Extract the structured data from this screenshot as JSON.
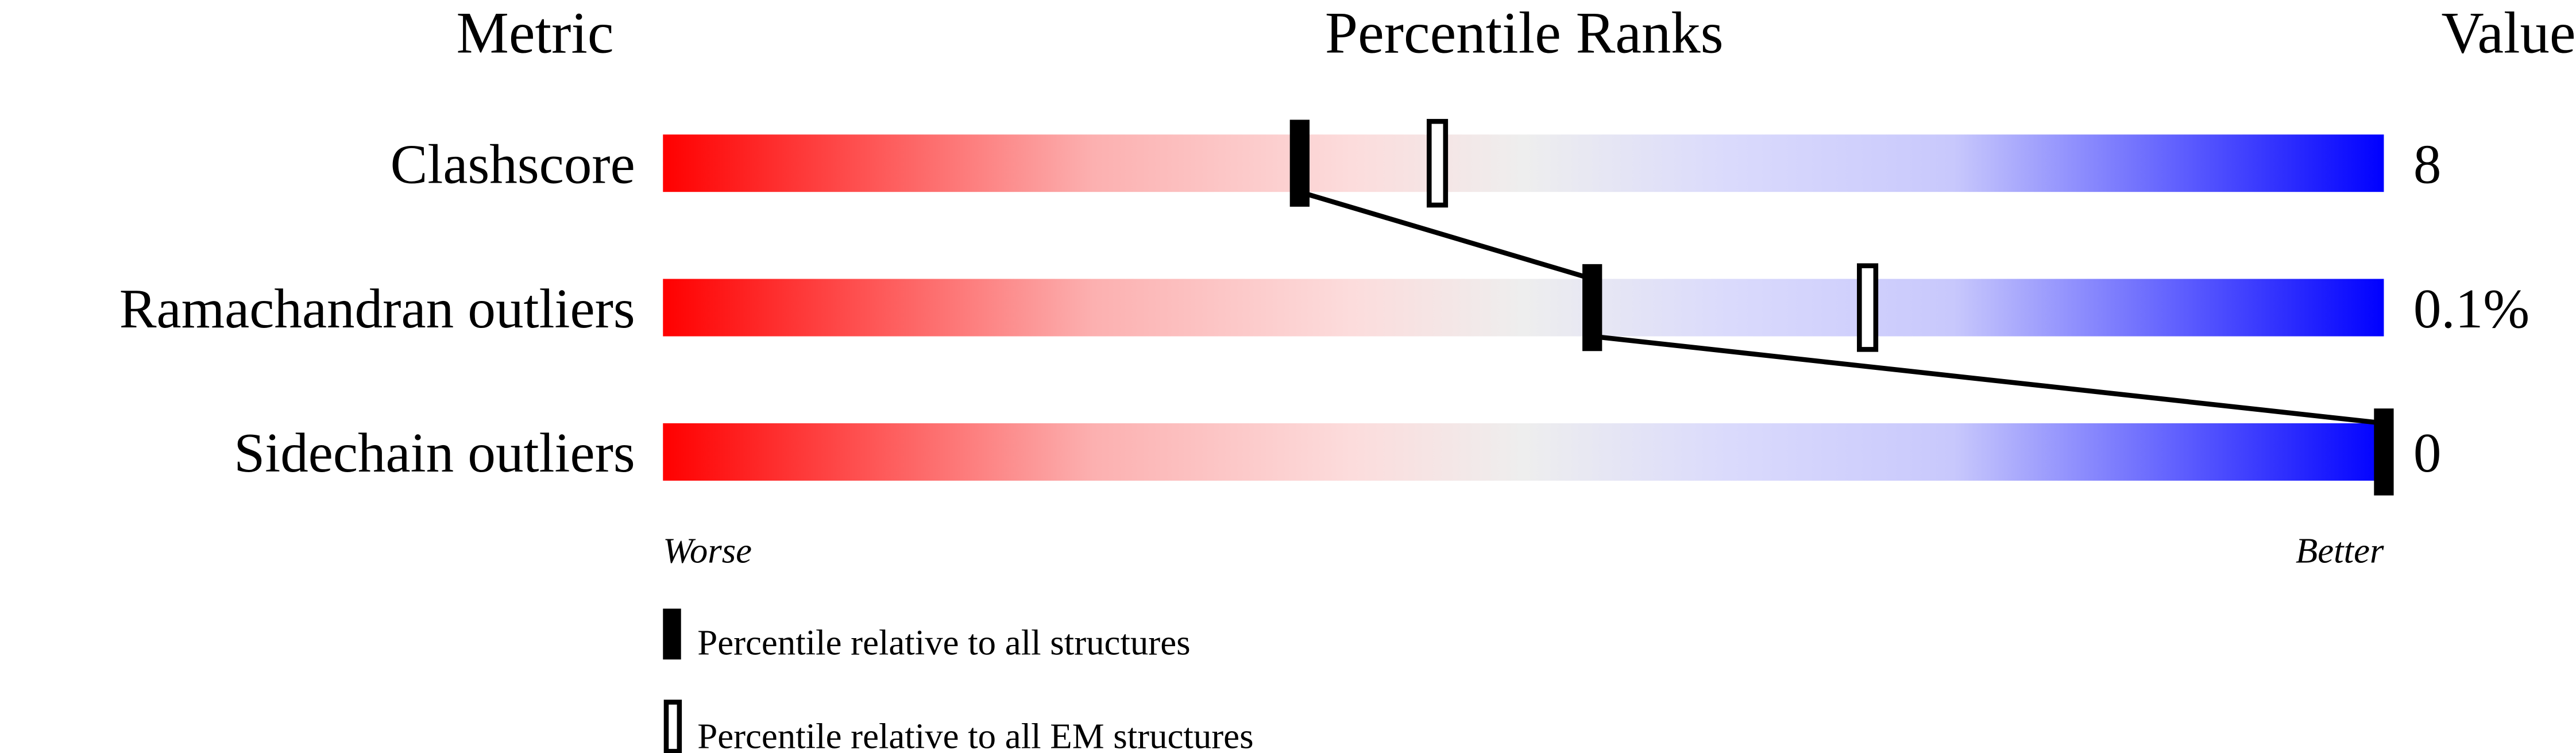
{
  "chart_data": {
    "type": "percentile-slider",
    "headers": {
      "metric": "Metric",
      "ranks": "Percentile Ranks",
      "value": "Value"
    },
    "xlim": [
      0,
      100
    ],
    "axis_labels": {
      "left": "Worse",
      "right": "Better"
    },
    "gradient_colors": [
      "#ff0000",
      "#fdd9d9",
      "#eeeeee",
      "#d9d9fd",
      "#0000ff"
    ],
    "rows": [
      {
        "metric": "Clashscore",
        "value": "8",
        "percentile_all": 37,
        "percentile_em": 45
      },
      {
        "metric": "Ramachandran outliers",
        "value": "0.1%",
        "percentile_all": 54,
        "percentile_em": 70
      },
      {
        "metric": "Sidechain outliers",
        "value": "0",
        "percentile_all": 100,
        "percentile_em": null
      }
    ],
    "legend": [
      {
        "marker": "filled",
        "label": "Percentile relative to all structures"
      },
      {
        "marker": "open",
        "label": "Percentile relative to all EM structures"
      }
    ]
  }
}
